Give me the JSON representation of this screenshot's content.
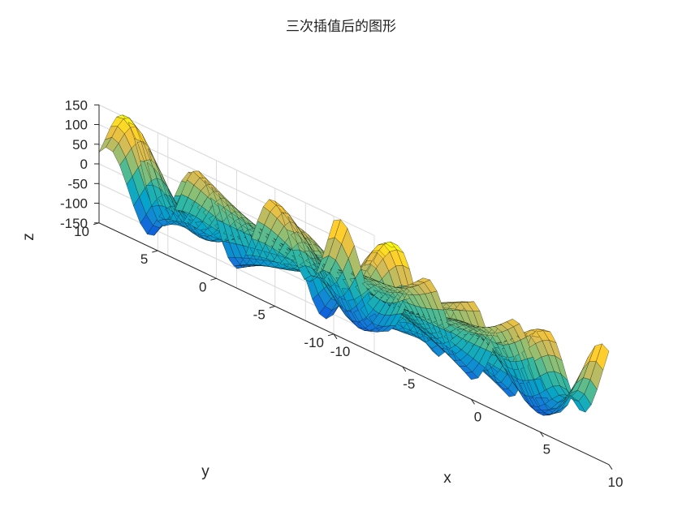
{
  "chart_data": {
    "type": "surface",
    "title": "三次插值后的图形",
    "xlabel": "x",
    "ylabel": "y",
    "zlabel": "z",
    "xlim": [
      -10,
      10
    ],
    "ylim": [
      -10,
      10
    ],
    "zlim": [
      -150,
      150
    ],
    "xticks": [
      "-10",
      "-5",
      "0",
      "5",
      "10"
    ],
    "yticks": [
      "-10",
      "-5",
      "0",
      "5",
      "10"
    ],
    "zticks": [
      "-150",
      "-100",
      "-50",
      "0",
      "50",
      "100",
      "150"
    ],
    "colormap": "parula",
    "colors": [
      "#352a87",
      "#0f5cdd",
      "#1481d6",
      "#06a4ca",
      "#2eb7a4",
      "#87bf77",
      "#d1bb59",
      "#fec832",
      "#f9fb0e"
    ],
    "mesh_color": "#000000",
    "grid": true,
    "surface": {
      "function": "z = x^2 * sin(y) - y^2 * cos(x) (cubic interpolated)",
      "grid_step": 0.5
    }
  }
}
